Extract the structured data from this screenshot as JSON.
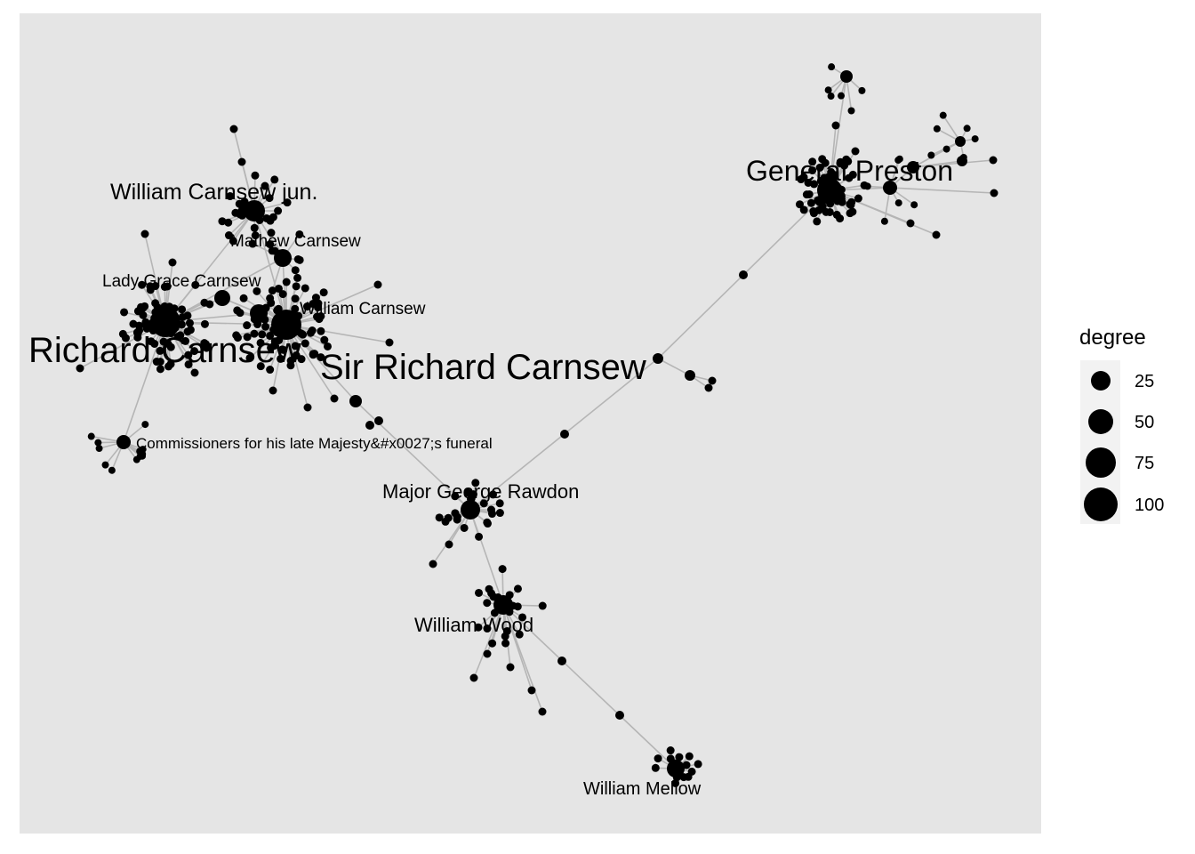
{
  "legend": {
    "title": "degree",
    "entries": [
      {
        "label": "25",
        "value": 25
      },
      {
        "label": "50",
        "value": 50
      },
      {
        "label": "75",
        "value": 75
      },
      {
        "label": "100",
        "value": 100
      }
    ]
  },
  "colors": {
    "panel_background": "#e5e5e5",
    "edge": "#b5b5b5",
    "node": "#000000"
  },
  "labels": [
    {
      "id": "richard-carnsew",
      "text": "Richard Carnsew",
      "size": "large"
    },
    {
      "id": "sir-richard-carnsew",
      "text": "Sir Richard Carnsew",
      "size": "large"
    },
    {
      "id": "general-preston",
      "text": "General Preston",
      "size": "medium"
    },
    {
      "id": "william-carnsew-jun",
      "text": "William Carnsew jun.",
      "size": "medium"
    },
    {
      "id": "mathew-carnsew",
      "text": "Mathew Carnsew",
      "size": "small"
    },
    {
      "id": "lady-grace-carnsew",
      "text": "Lady Grace Carnsew",
      "size": "small"
    },
    {
      "id": "william-carnsew",
      "text": "William Carnsew",
      "size": "small"
    },
    {
      "id": "commissioners",
      "text": "Commissioners for his late Majesty&#x0027;s funeral",
      "size": "small"
    },
    {
      "id": "major-george-rawdon",
      "text": "Major George Rawdon",
      "size": "medium"
    },
    {
      "id": "william-wood",
      "text": "William Wood",
      "size": "medium"
    },
    {
      "id": "william-mellow",
      "text": "William Mellow",
      "size": "small"
    }
  ]
}
